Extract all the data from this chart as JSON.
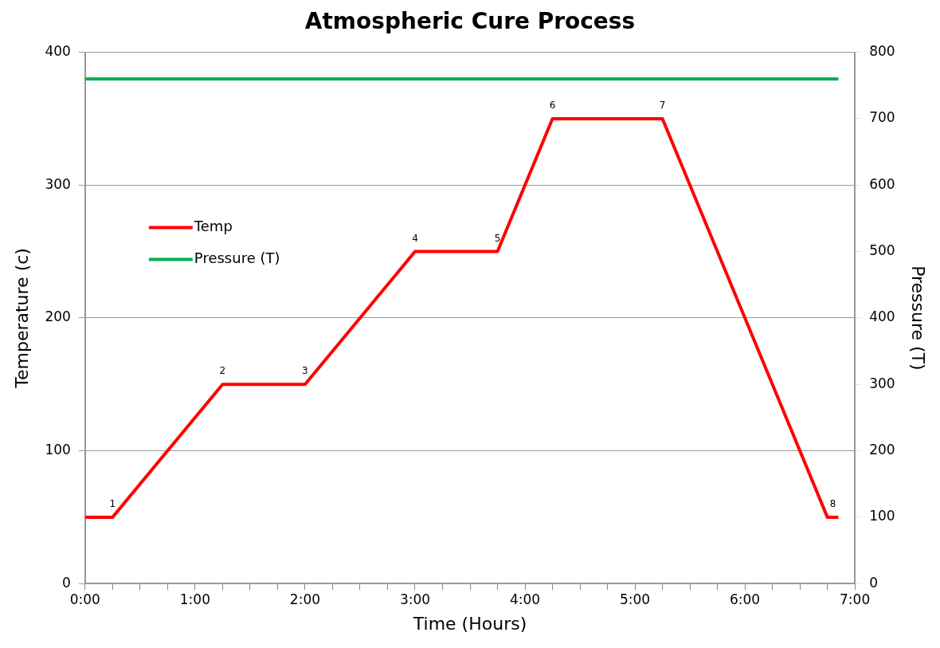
{
  "chart_data": {
    "type": "line",
    "title": "Atmospheric Cure Process",
    "xlabel": "Time (Hours)",
    "ylabel": "Temperature (c)",
    "y2label": "Pressure (T)",
    "series": [
      {
        "name": "Temp",
        "color": "#ff0000",
        "x": [
          0,
          0.25,
          1.25,
          2,
          3,
          3.75,
          4.25,
          5.25,
          6.75,
          6.85
        ],
        "values": [
          50,
          50,
          150,
          150,
          250,
          250,
          350,
          350,
          50,
          50
        ]
      },
      {
        "name": "Pressure (T)",
        "color": "#00b050",
        "axis": "y2",
        "x": [
          0,
          6.85
        ],
        "values": [
          760,
          760
        ]
      }
    ],
    "xlim": [
      0,
      7
    ],
    "xticks": [
      {
        "value": 0,
        "label": "0:00"
      },
      {
        "value": 0.25,
        "label": null
      },
      {
        "value": 0.5,
        "label": null
      },
      {
        "value": 0.75,
        "label": null
      },
      {
        "value": 1,
        "label": "1:00"
      },
      {
        "value": 1.25,
        "label": null
      },
      {
        "value": 1.5,
        "label": null
      },
      {
        "value": 1.75,
        "label": null
      },
      {
        "value": 2,
        "label": "2:00"
      },
      {
        "value": 2.25,
        "label": null
      },
      {
        "value": 2.5,
        "label": null
      },
      {
        "value": 2.75,
        "label": null
      },
      {
        "value": 3,
        "label": "3:00"
      },
      {
        "value": 3.25,
        "label": null
      },
      {
        "value": 3.5,
        "label": null
      },
      {
        "value": 3.75,
        "label": null
      },
      {
        "value": 4,
        "label": "4:00"
      },
      {
        "value": 4.25,
        "label": null
      },
      {
        "value": 4.5,
        "label": null
      },
      {
        "value": 4.75,
        "label": null
      },
      {
        "value": 5,
        "label": "5:00"
      },
      {
        "value": 5.25,
        "label": null
      },
      {
        "value": 5.5,
        "label": null
      },
      {
        "value": 5.75,
        "label": null
      },
      {
        "value": 6,
        "label": "6:00"
      },
      {
        "value": 6.25,
        "label": null
      },
      {
        "value": 6.5,
        "label": null
      },
      {
        "value": 6.75,
        "label": null
      },
      {
        "value": 7,
        "label": "7:00"
      }
    ],
    "ylim": [
      0,
      400
    ],
    "yticks": [
      0,
      100,
      200,
      300,
      400
    ],
    "y2lim": [
      0,
      800
    ],
    "y2ticks": [
      0,
      100,
      200,
      300,
      400,
      500,
      600,
      700,
      800
    ],
    "annotations": [
      {
        "text": "1",
        "x": 0.25,
        "y": 50
      },
      {
        "text": "2",
        "x": 1.25,
        "y": 150
      },
      {
        "text": "3",
        "x": 2,
        "y": 150
      },
      {
        "text": "4",
        "x": 3,
        "y": 250
      },
      {
        "text": "5",
        "x": 3.75,
        "y": 250
      },
      {
        "text": "6",
        "x": 4.25,
        "y": 350
      },
      {
        "text": "7",
        "x": 5.25,
        "y": 350
      },
      {
        "text": "8",
        "x": 6.8,
        "y": 50
      }
    ],
    "grid": "y",
    "legend": "top left",
    "marker": "none",
    "line_style": "solid"
  }
}
